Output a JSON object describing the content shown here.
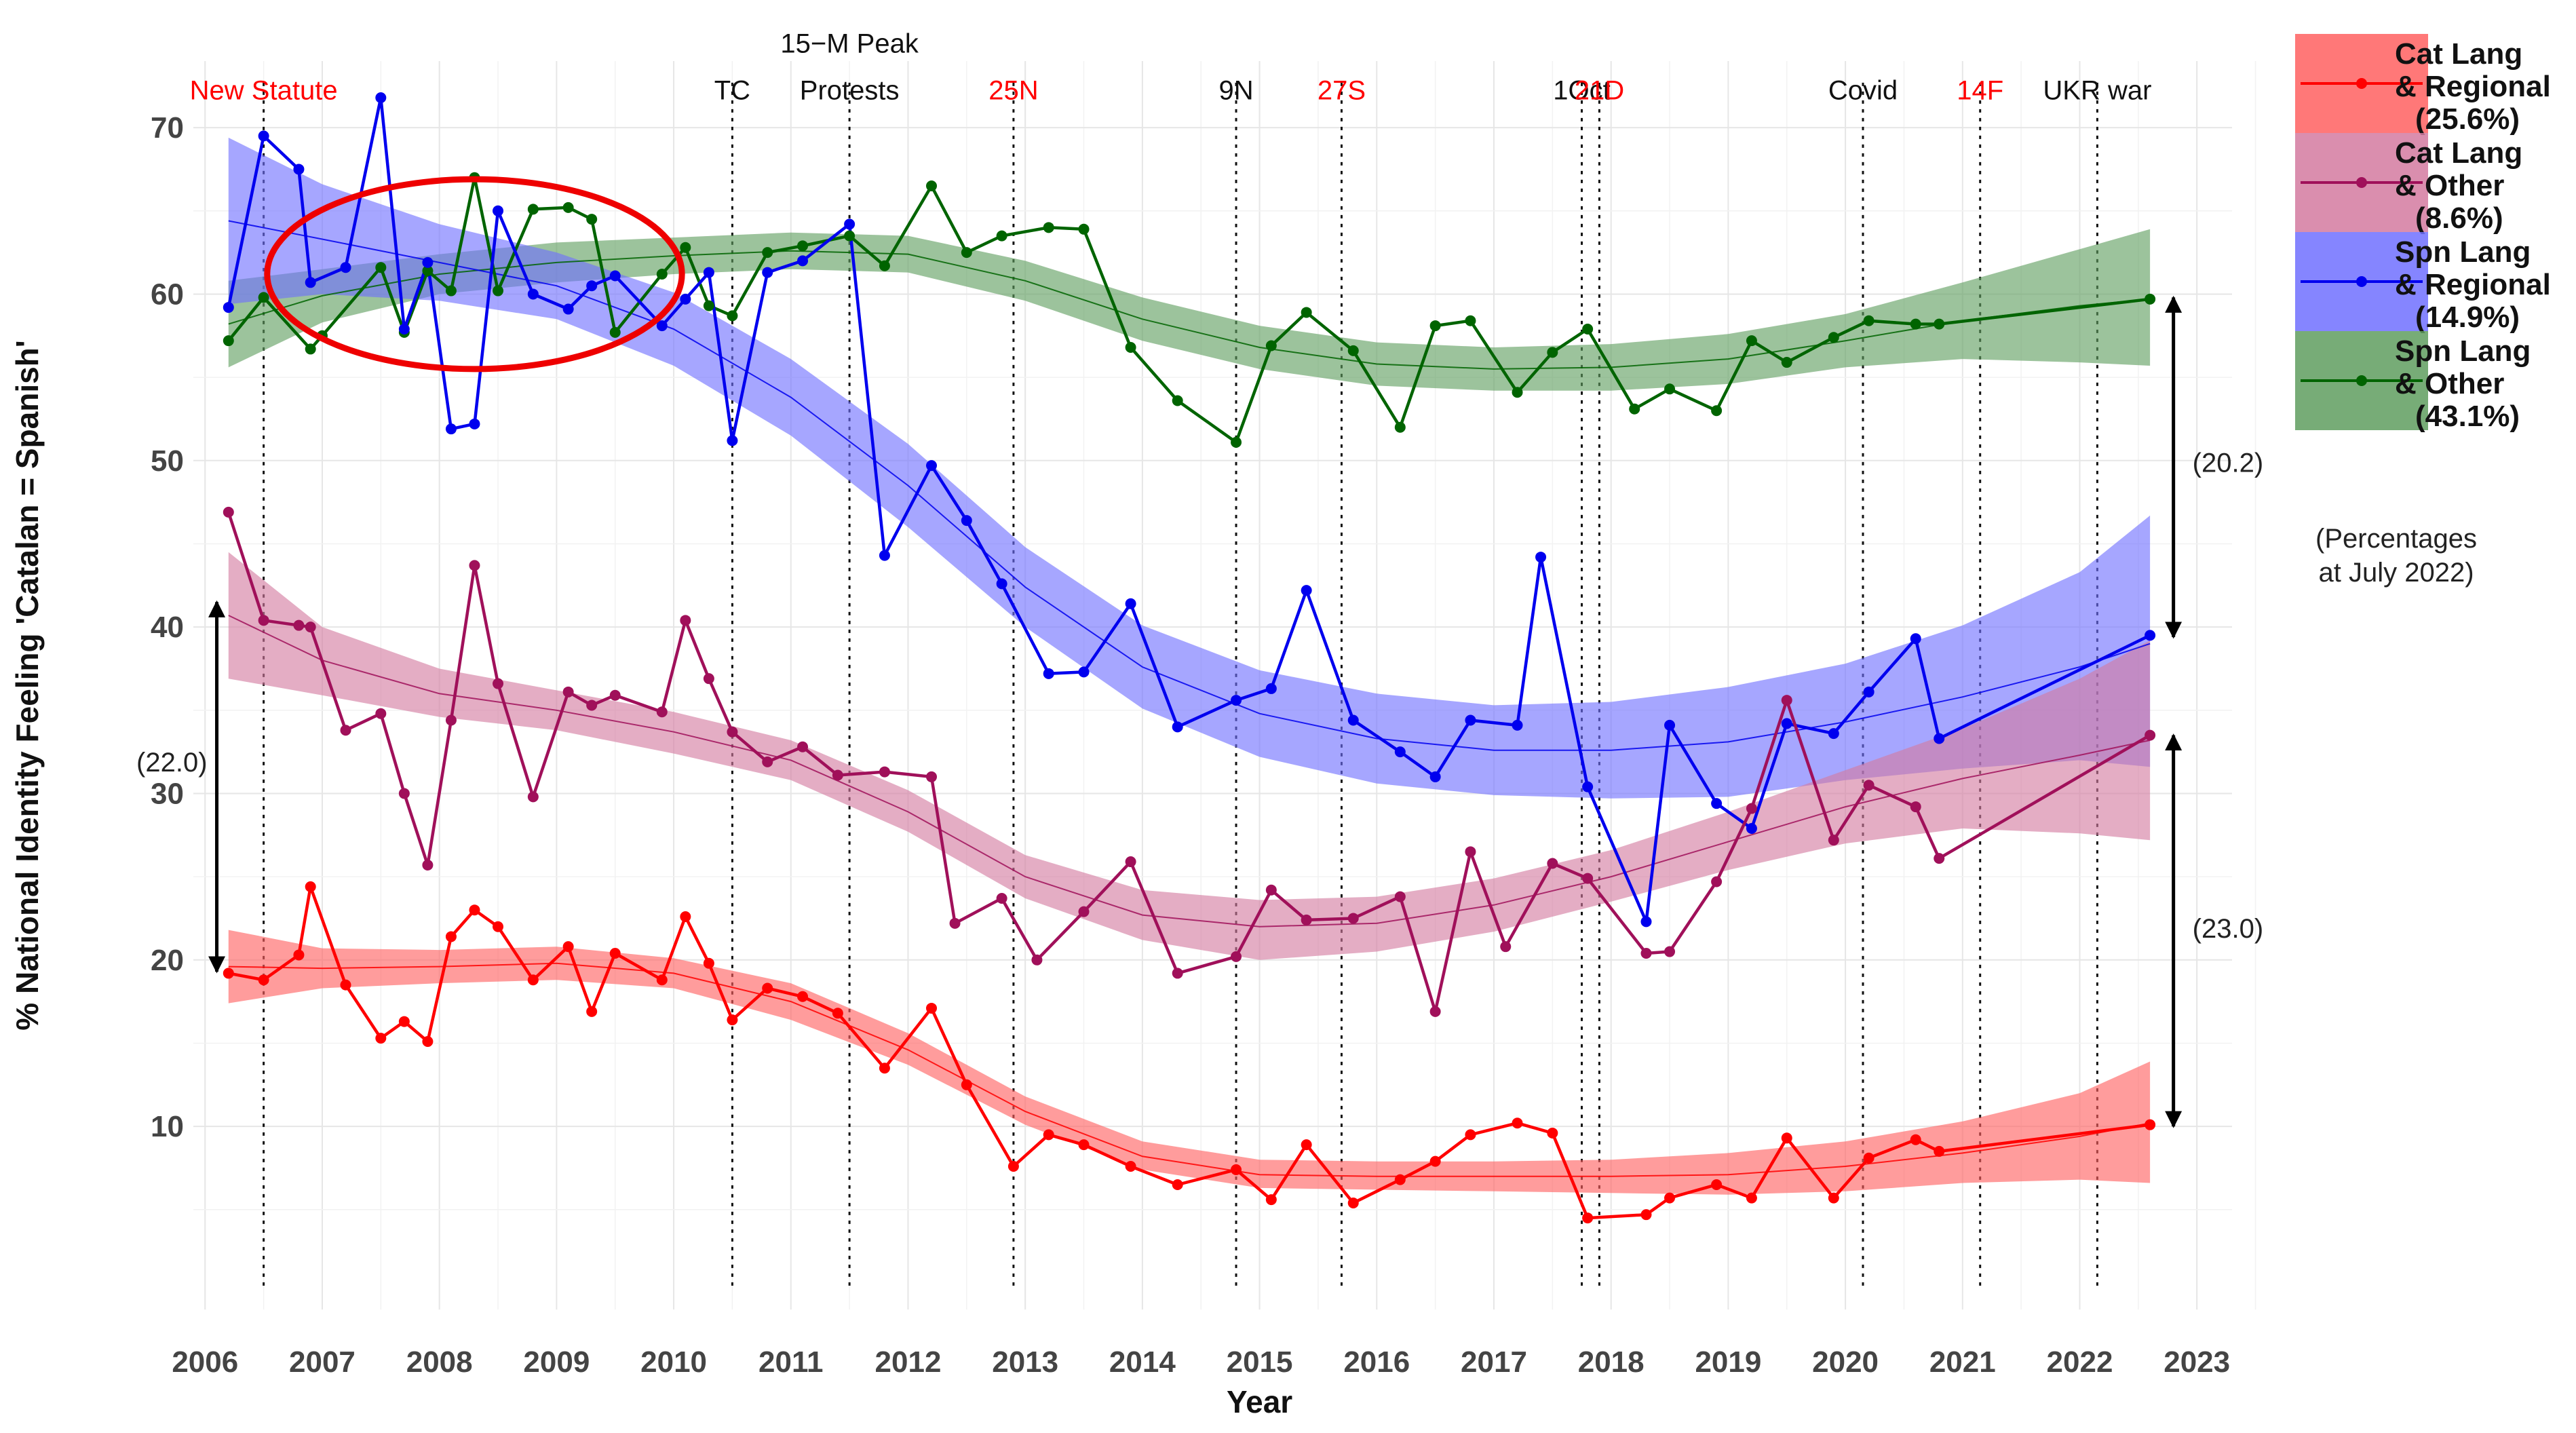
{
  "chart_data": {
    "type": "line",
    "title": "",
    "xlabel": "Year",
    "ylabel": "% National Identity Feeling 'Catalan = Spanish'",
    "xlim": [
      2005.9,
      2023.3
    ],
    "ylim": [
      -1,
      74
    ],
    "xticks": [
      2006,
      2007,
      2008,
      2009,
      2010,
      2011,
      2012,
      2013,
      2014,
      2015,
      2016,
      2017,
      2018,
      2019,
      2020,
      2021,
      2022,
      2023
    ],
    "yticks": [
      10,
      20,
      30,
      40,
      50,
      60,
      70
    ],
    "grid": true,
    "legend_position": "top-right",
    "events": [
      {
        "label": "New Statute",
        "x": 2006.5,
        "color": "#ff0000",
        "row": 2
      },
      {
        "label": "TC",
        "x": 2010.5,
        "color": "#111111",
        "row": 2
      },
      {
        "label": "15−M Peak",
        "x": 2011.5,
        "color": "#111111",
        "row": 1
      },
      {
        "label": "Protests",
        "x": 2011.5,
        "color": "#111111",
        "row": 2
      },
      {
        "label": "25N",
        "x": 2012.9,
        "color": "#ff0000",
        "row": 2
      },
      {
        "label": "9N",
        "x": 2014.8,
        "color": "#111111",
        "row": 2
      },
      {
        "label": "27S",
        "x": 2015.7,
        "color": "#ff0000",
        "row": 2
      },
      {
        "label": "1Oct",
        "x": 2017.75,
        "color": "#111111",
        "row": 2
      },
      {
        "label": "21D",
        "x": 2017.9,
        "color": "#ff0000",
        "row": 2
      },
      {
        "label": "Covid",
        "x": 2020.15,
        "color": "#111111",
        "row": 2
      },
      {
        "label": "14F",
        "x": 2021.15,
        "color": "#ff0000",
        "row": 2
      },
      {
        "label": "UKR war",
        "x": 2022.15,
        "color": "#111111",
        "row": 2
      }
    ],
    "series": [
      {
        "name": "Cat Lang & Regional",
        "legend_lines": [
          "Cat Lang",
          "& Regional",
          "(25.6%)"
        ],
        "color": "#ff0000",
        "band_color": "#ff6060",
        "x": [
          2006.2,
          2006.5,
          2006.8,
          2006.9,
          2007.2,
          2007.5,
          2007.7,
          2007.9,
          2008.1,
          2008.3,
          2008.5,
          2008.8,
          2009.1,
          2009.3,
          2009.5,
          2009.9,
          2010.1,
          2010.3,
          2010.5,
          2010.8,
          2011.1,
          2011.4,
          2011.8,
          2012.2,
          2012.5,
          2012.9,
          2013.2,
          2013.5,
          2013.9,
          2014.3,
          2014.8,
          2015.1,
          2015.4,
          2015.8,
          2016.2,
          2016.5,
          2016.8,
          2017.2,
          2017.5,
          2017.8,
          2018.3,
          2018.5,
          2018.9,
          2019.2,
          2019.5,
          2019.9,
          2020.2,
          2020.6,
          2020.8,
          2022.6
        ],
        "values": [
          19.2,
          18.8,
          20.3,
          24.4,
          18.5,
          15.3,
          16.3,
          15.1,
          21.4,
          23.0,
          22.0,
          18.8,
          20.8,
          16.9,
          20.4,
          18.8,
          22.6,
          19.8,
          16.4,
          18.3,
          17.8,
          16.8,
          13.5,
          17.1,
          12.5,
          7.6,
          9.5,
          8.9,
          7.6,
          6.5,
          7.4,
          5.6,
          8.9,
          5.4,
          6.8,
          7.9,
          9.5,
          10.2,
          9.6,
          4.5,
          4.7,
          5.7,
          6.5,
          5.7,
          9.3,
          5.7,
          8.1,
          9.2,
          8.5,
          10.1
        ],
        "fit_x": [
          2006.2,
          2007,
          2008,
          2009,
          2010,
          2011,
          2012,
          2013,
          2014,
          2015,
          2016,
          2017,
          2018,
          2019,
          2020,
          2021,
          2022,
          2022.6
        ],
        "fit_y": [
          19.6,
          19.5,
          19.6,
          19.8,
          19.2,
          17.5,
          14.6,
          10.9,
          8.2,
          7.1,
          7.0,
          7.0,
          7.0,
          7.1,
          7.6,
          8.4,
          9.4,
          10.2
        ],
        "fit_lo": [
          17.4,
          18.3,
          18.6,
          18.8,
          18.3,
          16.4,
          13.7,
          10.1,
          7.4,
          6.3,
          6.2,
          6.1,
          6.0,
          5.9,
          6.1,
          6.6,
          6.8,
          6.6
        ],
        "fit_hi": [
          21.8,
          20.7,
          20.6,
          20.8,
          20.1,
          18.6,
          15.6,
          11.8,
          9.1,
          8.0,
          7.9,
          7.9,
          8.0,
          8.4,
          9.1,
          10.3,
          12.0,
          13.9
        ]
      },
      {
        "name": "Cat Lang & Other",
        "legend_lines": [
          "Cat Lang",
          "& Other",
          "(8.6%)"
        ],
        "color": "#a0105a",
        "band_color": "#d37aa0",
        "x": [
          2006.2,
          2006.5,
          2006.8,
          2006.9,
          2007.2,
          2007.5,
          2007.7,
          2007.9,
          2008.1,
          2008.3,
          2008.5,
          2008.8,
          2009.1,
          2009.3,
          2009.5,
          2009.9,
          2010.1,
          2010.3,
          2010.5,
          2010.8,
          2011.1,
          2011.4,
          2011.8,
          2012.2,
          2012.4,
          2012.8,
          2013.1,
          2013.5,
          2013.9,
          2014.3,
          2014.8,
          2015.1,
          2015.4,
          2015.8,
          2016.2,
          2016.5,
          2016.8,
          2017.1,
          2017.5,
          2017.8,
          2018.3,
          2018.5,
          2018.9,
          2019.2,
          2019.5,
          2019.9,
          2020.2,
          2020.6,
          2020.8,
          2022.6
        ],
        "values": [
          46.9,
          40.4,
          40.1,
          40.0,
          33.8,
          34.8,
          30.0,
          25.7,
          34.4,
          43.7,
          36.6,
          29.8,
          36.1,
          35.3,
          35.9,
          34.9,
          40.4,
          36.9,
          33.7,
          31.9,
          32.8,
          31.1,
          31.3,
          31.0,
          22.2,
          23.7,
          20.0,
          22.9,
          25.9,
          19.2,
          20.2,
          24.2,
          22.4,
          22.5,
          23.8,
          16.9,
          26.5,
          20.8,
          25.8,
          24.9,
          20.4,
          20.5,
          24.7,
          29.1,
          35.6,
          27.2,
          30.5,
          29.2,
          26.1,
          33.5
        ],
        "fit_x": [
          2006.2,
          2007,
          2008,
          2009,
          2010,
          2011,
          2012,
          2013,
          2014,
          2015,
          2016,
          2017,
          2018,
          2019,
          2020,
          2021,
          2022,
          2022.6
        ],
        "fit_y": [
          40.7,
          38.0,
          36.0,
          35.0,
          33.7,
          32.0,
          28.9,
          25.0,
          22.7,
          22.0,
          22.2,
          23.3,
          25.0,
          27.1,
          29.2,
          30.9,
          32.3,
          33.2
        ],
        "fit_lo": [
          36.9,
          35.9,
          34.6,
          33.8,
          32.4,
          30.8,
          27.7,
          23.7,
          21.2,
          20.0,
          20.5,
          21.7,
          23.5,
          25.4,
          27.0,
          27.9,
          27.6,
          27.2
        ],
        "fit_hi": [
          44.5,
          40.0,
          37.5,
          36.2,
          34.9,
          33.2,
          30.2,
          26.3,
          24.2,
          23.6,
          23.8,
          24.9,
          26.6,
          28.9,
          31.4,
          33.9,
          36.9,
          39.2
        ]
      },
      {
        "name": "Spn Lang & Regional",
        "legend_lines": [
          "Spn Lang",
          "& Regional",
          "(14.9%)"
        ],
        "color": "#0000ee",
        "band_color": "#7070ff",
        "x": [
          2006.2,
          2006.5,
          2006.8,
          2006.9,
          2007.2,
          2007.5,
          2007.7,
          2007.9,
          2008.1,
          2008.3,
          2008.5,
          2008.8,
          2009.1,
          2009.3,
          2009.5,
          2009.9,
          2010.1,
          2010.3,
          2010.5,
          2010.8,
          2011.1,
          2011.5,
          2011.8,
          2012.2,
          2012.5,
          2012.8,
          2013.2,
          2013.5,
          2013.9,
          2014.3,
          2014.8,
          2015.1,
          2015.4,
          2015.8,
          2016.2,
          2016.5,
          2016.8,
          2017.2,
          2017.4,
          2017.8,
          2018.3,
          2018.5,
          2018.9,
          2019.2,
          2019.5,
          2019.9,
          2020.2,
          2020.6,
          2020.8,
          2022.6
        ],
        "values": [
          59.2,
          69.5,
          67.5,
          60.7,
          61.6,
          71.8,
          57.9,
          61.9,
          51.9,
          52.2,
          65.0,
          60.0,
          59.1,
          60.5,
          61.1,
          58.1,
          59.7,
          61.3,
          51.2,
          61.3,
          62.0,
          64.2,
          44.3,
          49.7,
          46.4,
          42.6,
          37.2,
          37.3,
          41.4,
          34.0,
          35.6,
          36.3,
          42.2,
          34.4,
          32.5,
          31.0,
          34.4,
          34.1,
          44.2,
          30.4,
          22.3,
          34.1,
          29.4,
          27.9,
          34.2,
          33.6,
          36.1,
          39.3,
          33.3,
          39.5
        ],
        "fit_x": [
          2006.2,
          2007,
          2008,
          2009,
          2010,
          2011,
          2012,
          2013,
          2014,
          2015,
          2016,
          2017,
          2018,
          2019,
          2020,
          2021,
          2022,
          2022.6
        ],
        "fit_y": [
          64.4,
          63.3,
          61.9,
          60.5,
          57.9,
          53.8,
          48.5,
          42.4,
          37.6,
          34.8,
          33.3,
          32.6,
          32.6,
          33.1,
          34.3,
          35.8,
          37.6,
          39.0
        ],
        "fit_lo": [
          59.4,
          60.0,
          59.6,
          58.5,
          55.7,
          51.5,
          46.0,
          40.0,
          35.1,
          32.2,
          30.6,
          29.9,
          29.7,
          29.8,
          30.8,
          31.5,
          32.0,
          31.6
        ],
        "fit_hi": [
          69.4,
          66.6,
          64.2,
          62.5,
          60.1,
          56.1,
          51.0,
          44.8,
          40.1,
          37.4,
          36.0,
          35.3,
          35.5,
          36.4,
          37.8,
          40.1,
          43.3,
          46.7
        ]
      },
      {
        "name": "Spn Lang & Other",
        "legend_lines": [
          "Spn Lang",
          "& Other",
          "(43.1%)"
        ],
        "color": "#006400",
        "band_color": "#5f9e5f",
        "x": [
          2006.2,
          2006.5,
          2006.9,
          2007.0,
          2007.5,
          2007.7,
          2007.9,
          2008.1,
          2008.3,
          2008.5,
          2008.8,
          2009.1,
          2009.3,
          2009.5,
          2009.9,
          2010.1,
          2010.3,
          2010.5,
          2010.8,
          2011.1,
          2011.5,
          2011.8,
          2012.2,
          2012.5,
          2012.8,
          2013.2,
          2013.5,
          2013.9,
          2014.3,
          2014.8,
          2015.1,
          2015.4,
          2015.8,
          2016.2,
          2016.5,
          2016.8,
          2017.2,
          2017.5,
          2017.8,
          2018.2,
          2018.5,
          2018.9,
          2019.2,
          2019.5,
          2019.9,
          2020.2,
          2020.6,
          2020.8,
          2022.6
        ],
        "values": [
          57.2,
          59.8,
          56.7,
          57.5,
          61.6,
          57.7,
          61.4,
          60.2,
          67.0,
          60.2,
          65.1,
          65.2,
          64.5,
          57.7,
          61.2,
          62.8,
          59.3,
          58.7,
          62.5,
          62.9,
          63.5,
          61.7,
          66.5,
          62.5,
          63.5,
          64.0,
          63.9,
          56.8,
          53.6,
          51.1,
          56.9,
          58.9,
          56.6,
          52.0,
          58.1,
          58.4,
          54.1,
          56.5,
          57.9,
          53.1,
          54.3,
          53.0,
          57.2,
          55.9,
          57.4,
          58.4,
          58.2,
          58.2,
          59.7
        ],
        "fit_x": [
          2006.2,
          2007,
          2008,
          2009,
          2010,
          2011,
          2012,
          2013,
          2014,
          2015,
          2016,
          2017,
          2018,
          2019,
          2020,
          2021,
          2022,
          2022.6
        ],
        "fit_y": [
          58.2,
          59.9,
          61.2,
          61.9,
          62.3,
          62.6,
          62.4,
          60.8,
          58.5,
          56.8,
          55.8,
          55.5,
          55.6,
          56.1,
          57.2,
          58.4,
          59.3,
          59.7
        ],
        "fit_lo": [
          55.6,
          58.3,
          60.0,
          60.7,
          61.2,
          61.5,
          61.3,
          59.6,
          57.2,
          55.5,
          54.5,
          54.2,
          54.2,
          54.6,
          55.6,
          56.1,
          55.9,
          55.7
        ],
        "fit_hi": [
          60.8,
          61.5,
          62.4,
          63.1,
          63.4,
          63.7,
          63.5,
          62.0,
          59.8,
          58.1,
          57.1,
          56.8,
          57.0,
          57.6,
          58.8,
          60.7,
          62.7,
          63.9
        ]
      }
    ],
    "annotations": [
      {
        "label": "(22.0)",
        "x": 2006.1,
        "y_from": 41.5,
        "y_to": 19.3,
        "label_y": 31.9
      },
      {
        "label": "(20.2)",
        "x": 2022.8,
        "y_from": 59.8,
        "y_to": 39.4,
        "label_y": 49.9
      },
      {
        "label": "(23.0)",
        "x": 2022.8,
        "y_from": 33.5,
        "y_to": 10.0,
        "label_y": 21.9
      }
    ],
    "side_note": [
      "(Percentages",
      "at July 2022)"
    ],
    "highlight_ellipse": {
      "cx": 2008.3,
      "cy": 61.2,
      "rx": 1.77,
      "ry": 5.7,
      "color": "#ee0000"
    }
  }
}
